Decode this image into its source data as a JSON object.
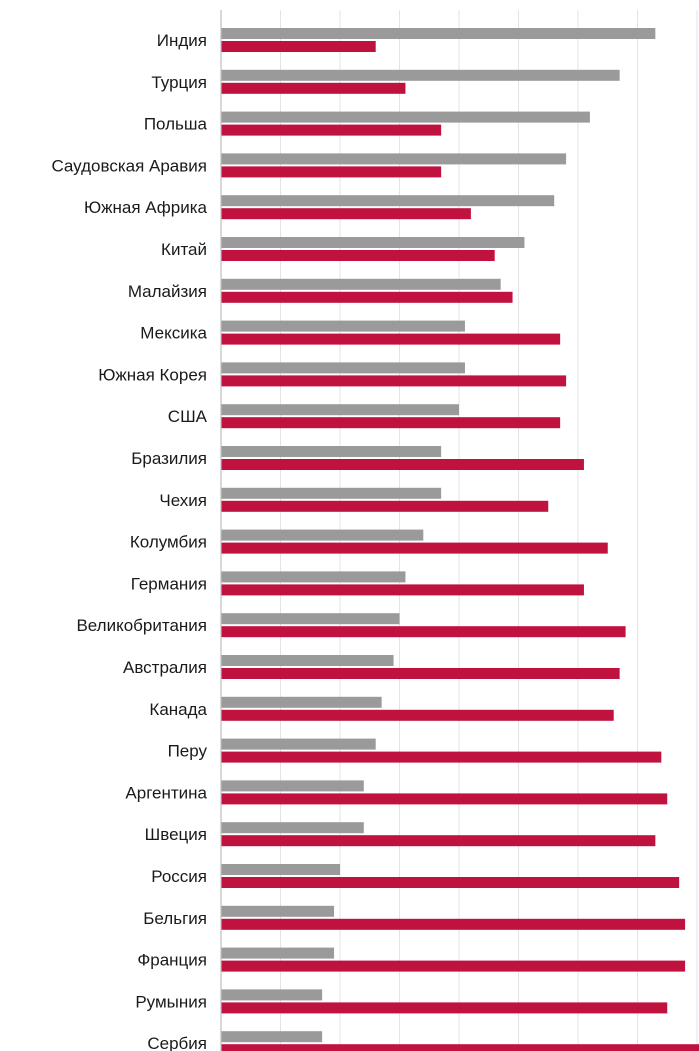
{
  "chart_data": {
    "type": "bar",
    "orientation": "horizontal",
    "categories": [
      "Индия",
      "Турция",
      "Польша",
      "Саудовская Аравия",
      "Южная Африка",
      "Китай",
      "Малайзия",
      "Мексика",
      "Южная Корея",
      "США",
      "Бразилия",
      "Чехия",
      "Колумбия",
      "Германия",
      "Великобритания",
      "Австралия",
      "Канада",
      "Перу",
      "Аргентина",
      "Швеция",
      "Россия",
      "Бельгия",
      "Франция",
      "Румыния",
      "Сербия"
    ],
    "series": [
      {
        "color": "#9a9a9a",
        "values": [
          73,
          67,
          62,
          58,
          56,
          51,
          47,
          41,
          41,
          40,
          37,
          37,
          34,
          31,
          30,
          29,
          27,
          26,
          24,
          24,
          20,
          19,
          19,
          17,
          17
        ]
      },
      {
        "color": "#c0123f",
        "values": [
          26,
          31,
          37,
          37,
          42,
          46,
          49,
          57,
          58,
          57,
          61,
          55,
          65,
          61,
          68,
          67,
          66,
          74,
          75,
          73,
          77,
          78,
          78,
          75,
          81
        ]
      }
    ],
    "xlim": [
      0,
      80
    ],
    "grid": true,
    "legend": "none",
    "xlabel": "",
    "ylabel": "",
    "title": ""
  }
}
